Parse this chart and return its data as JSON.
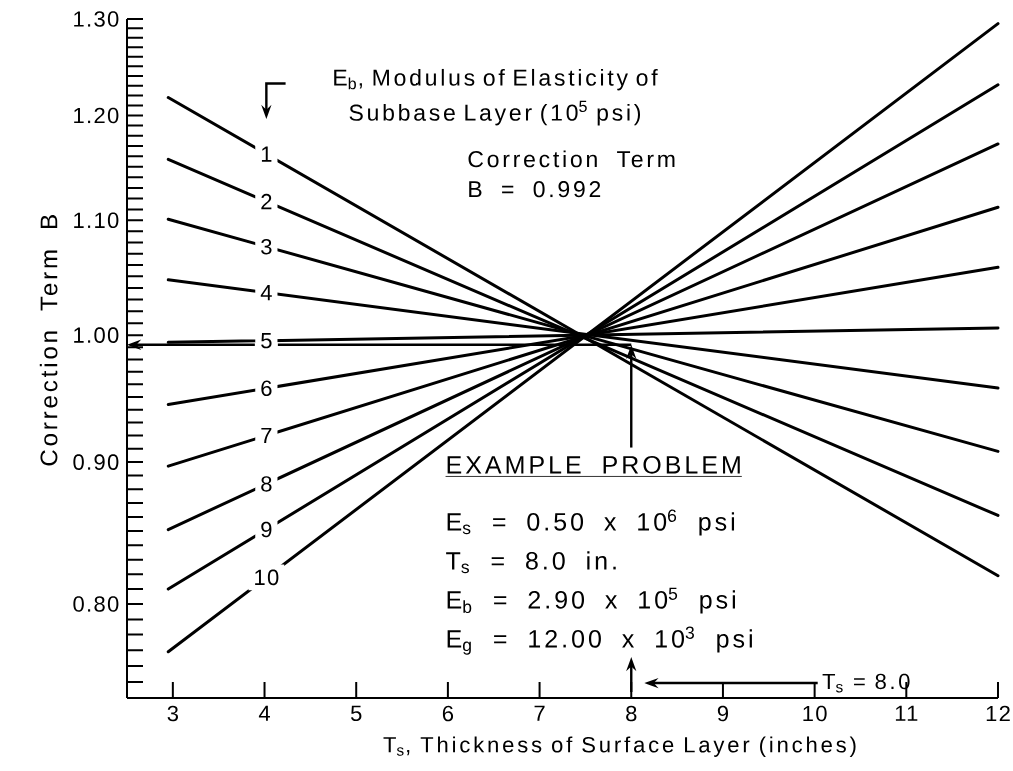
{
  "chart_data": {
    "type": "line",
    "legend_title": "E$_{b}$, Modulus of Elasticity of Subbase Layer (10$^{5}$ psi)",
    "xlabel": "T$_{s}$, Thickness of Surface Layer (inches)",
    "ylabel": "Correction Term B",
    "x": [
      2.95,
      12
    ],
    "series": [
      {
        "name": "1",
        "color": "#000000",
        "values": [
          1.218,
          0.819
        ]
      },
      {
        "name": "2",
        "color": "#000000",
        "values": [
          1.157,
          0.861
        ]
      },
      {
        "name": "3",
        "color": "#000000",
        "values": [
          1.101,
          0.908
        ]
      },
      {
        "name": "4",
        "color": "#000000",
        "values": [
          1.047,
          0.957
        ]
      },
      {
        "name": "5",
        "color": "#000000",
        "values": [
          0.994,
          1.006
        ]
      },
      {
        "name": "6",
        "color": "#000000",
        "values": [
          0.944,
          1.058
        ]
      },
      {
        "name": "7",
        "color": "#000000",
        "values": [
          0.897,
          1.112
        ]
      },
      {
        "name": "8",
        "color": "#000000",
        "values": [
          0.851,
          1.172
        ]
      },
      {
        "name": "9",
        "color": "#000000",
        "values": [
          0.81,
          1.231
        ]
      },
      {
        "name": "10",
        "color": "#000000",
        "values": [
          0.769,
          1.295
        ]
      }
    ],
    "xlim": [
      2.5,
      12
    ],
    "ylim": [
      0.74,
      1.3
    ],
    "xticks": [
      3,
      4,
      5,
      6,
      7,
      8,
      9,
      10,
      11,
      12
    ],
    "yticks": [
      {
        "value": 0.75,
        "label": null
      },
      {
        "value": 0.76,
        "label": null
      },
      {
        "value": 0.77,
        "label": null
      },
      {
        "value": 0.78,
        "label": null
      },
      {
        "value": 0.79,
        "label": null
      },
      {
        "value": 0.8,
        "label": "0.80"
      },
      {
        "value": 0.81,
        "label": null
      },
      {
        "value": 0.82,
        "label": null
      },
      {
        "value": 0.83,
        "label": null
      },
      {
        "value": 0.84,
        "label": null
      },
      {
        "value": 0.85,
        "label": null
      },
      {
        "value": 0.86,
        "label": null
      },
      {
        "value": 0.87,
        "label": null
      },
      {
        "value": 0.88,
        "label": null
      },
      {
        "value": 0.89,
        "label": null
      },
      {
        "value": 0.9,
        "label": "0.90"
      },
      {
        "value": 0.91,
        "label": null
      },
      {
        "value": 0.92,
        "label": null
      },
      {
        "value": 0.93,
        "label": null
      },
      {
        "value": 0.94,
        "label": null
      },
      {
        "value": 0.95,
        "label": null
      },
      {
        "value": 0.96,
        "label": null
      },
      {
        "value": 0.97,
        "label": null
      },
      {
        "value": 0.98,
        "label": null
      },
      {
        "value": 0.99,
        "label": null
      },
      {
        "value": 1.0,
        "label": "1.00"
      },
      {
        "value": 1.01,
        "label": null
      },
      {
        "value": 1.02,
        "label": null
      },
      {
        "value": 1.03,
        "label": null
      },
      {
        "value": 1.04,
        "label": null
      },
      {
        "value": 1.05,
        "label": null
      },
      {
        "value": 1.06,
        "label": null
      },
      {
        "value": 1.07,
        "label": null
      },
      {
        "value": 1.08,
        "label": null
      },
      {
        "value": 1.09,
        "label": null
      },
      {
        "value": 1.1,
        "label": "1.10"
      },
      {
        "value": 1.11,
        "label": null
      },
      {
        "value": 1.12,
        "label": null
      },
      {
        "value": 1.13,
        "label": null
      },
      {
        "value": 1.14,
        "label": null
      },
      {
        "value": 1.15,
        "label": null
      },
      {
        "value": 1.16,
        "label": null
      },
      {
        "value": 1.17,
        "label": null
      },
      {
        "value": 1.18,
        "label": null
      },
      {
        "value": 1.19,
        "label": null
      },
      {
        "value": 1.2,
        "label": "1.20"
      },
      {
        "value": 1.21,
        "label": null
      },
      {
        "value": 1.22,
        "label": null
      },
      {
        "value": 1.23,
        "label": null
      },
      {
        "value": 1.24,
        "label": null
      },
      {
        "value": 1.25,
        "label": null
      },
      {
        "value": 1.26,
        "label": null
      },
      {
        "value": 1.27,
        "label": null
      },
      {
        "value": 1.28,
        "label": null
      },
      {
        "value": 1.29,
        "label": null
      },
      {
        "value": 1.3,
        "label": "1.30"
      }
    ],
    "log": "y",
    "ref_lines": [
      {
        "axis": "y",
        "value": 0.992
      },
      {
        "axis": "x",
        "value": 8
      }
    ],
    "annotations": [
      "Correction Term",
      "B = 0.992",
      "EXAMPLE PROBLEM",
      "E$_{s}$ = 0.50 x 10$^{6}$ psi",
      "T$_{s}$ = 8.0 in.",
      "E$_{b}$ = 2.90 x 10$^{5}$ psi",
      "E$_{g}$ = 12.00 x 10$^{3}$ psi",
      "T$_{s}$ = 8.0"
    ]
  }
}
